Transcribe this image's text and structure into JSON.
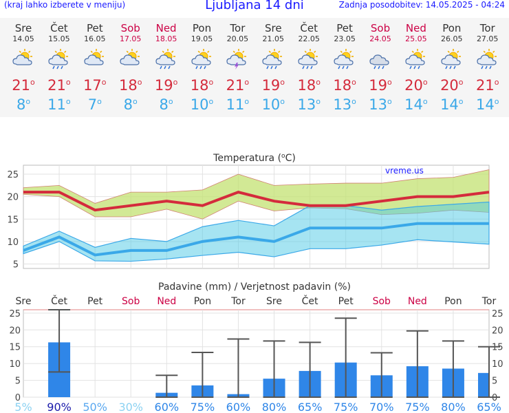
{
  "header": {
    "left_note": "(kraj lahko izberete v meniju)",
    "title": "Ljubljana 14 dni",
    "updated": "Zadnja posodobitev: 14.05.2025 - 04:24"
  },
  "forecast": [
    {
      "day": "Sre",
      "date": "14.05",
      "weekend": false,
      "icon": "partly-cloudy-icon",
      "tmax": "21",
      "tmin": "8"
    },
    {
      "day": "Čet",
      "date": "15.05",
      "weekend": false,
      "icon": "sun-rain-icon",
      "tmax": "21",
      "tmin": "11"
    },
    {
      "day": "Pet",
      "date": "16.05",
      "weekend": false,
      "icon": "partly-cloudy-icon",
      "tmax": "17",
      "tmin": "7"
    },
    {
      "day": "Sob",
      "date": "17.05",
      "weekend": true,
      "icon": "partly-cloudy-icon",
      "tmax": "18",
      "tmin": "8"
    },
    {
      "day": "Ned",
      "date": "18.05",
      "weekend": true,
      "icon": "sun-rain-icon",
      "tmax": "19",
      "tmin": "8"
    },
    {
      "day": "Pon",
      "date": "19.05",
      "weekend": false,
      "icon": "sun-rain-icon",
      "tmax": "18",
      "tmin": "10"
    },
    {
      "day": "Tor",
      "date": "20.05",
      "weekend": false,
      "icon": "thunderstorm-icon",
      "tmax": "21",
      "tmin": "11"
    },
    {
      "day": "Sre",
      "date": "21.05",
      "weekend": false,
      "icon": "sun-rain-icon",
      "tmax": "19",
      "tmin": "10"
    },
    {
      "day": "Čet",
      "date": "22.05",
      "weekend": false,
      "icon": "sun-rain-icon",
      "tmax": "18",
      "tmin": "13"
    },
    {
      "day": "Pet",
      "date": "23.05",
      "weekend": false,
      "icon": "sun-rain-icon",
      "tmax": "18",
      "tmin": "13"
    },
    {
      "day": "Sob",
      "date": "24.05",
      "weekend": true,
      "icon": "cloud-rain-icon",
      "tmax": "19",
      "tmin": "13"
    },
    {
      "day": "Ned",
      "date": "25.05",
      "weekend": true,
      "icon": "sun-rain-icon",
      "tmax": "20",
      "tmin": "14"
    },
    {
      "day": "Pon",
      "date": "26.05",
      "weekend": false,
      "icon": "sun-rain-icon",
      "tmax": "20",
      "tmin": "14"
    },
    {
      "day": "Tor",
      "date": "27.05",
      "weekend": false,
      "icon": "sun-rain-icon",
      "tmax": "21",
      "tmin": "14"
    }
  ],
  "degree_symbol": "o",
  "colors": {
    "tmax": "#d42b3c",
    "tmin": "#3aa8e8",
    "weekend": "#cc0044",
    "bar": "#2f86e8"
  },
  "chart_data": [
    {
      "type": "line",
      "title": "Temperatura (oC)",
      "watermark": "vreme.us",
      "categories": [
        "14.05",
        "15.05",
        "16.05",
        "17.05",
        "18.05",
        "19.05",
        "20.05",
        "21.05",
        "22.05",
        "23.05",
        "24.05",
        "25.05",
        "26.05",
        "27.05"
      ],
      "ylim": [
        4,
        27
      ],
      "yticks": [
        5,
        10,
        15,
        20,
        25
      ],
      "grid": true,
      "series": [
        {
          "role": "tmax",
          "values": [
            21,
            21,
            17,
            18,
            19,
            18,
            21,
            19,
            18,
            18,
            19,
            20,
            20,
            21
          ]
        },
        {
          "role": "tmin",
          "values": [
            8,
            11,
            7,
            8,
            8,
            10,
            11,
            10,
            13,
            13,
            13,
            14,
            14,
            14
          ]
        }
      ],
      "bands": [
        {
          "role": "tmax_range",
          "upper": [
            22,
            22.5,
            18.5,
            21,
            21,
            21.5,
            25,
            22.5,
            22.8,
            23,
            23,
            24,
            24.3,
            26
          ],
          "lower": [
            20.5,
            20,
            15.5,
            15.5,
            17.2,
            15,
            19,
            16.8,
            17.5,
            17.3,
            16,
            16.3,
            17,
            16.5
          ]
        },
        {
          "role": "tmin_range",
          "upper": [
            9,
            12.3,
            8.7,
            10.7,
            10,
            13.3,
            14.7,
            13.5,
            18,
            18,
            17,
            17.8,
            18.3,
            18.8
          ],
          "lower": [
            7.3,
            10,
            5.7,
            5.6,
            6.1,
            6.9,
            7.6,
            6.6,
            8.4,
            8.4,
            9.2,
            10.4,
            9.9,
            9.4
          ]
        }
      ]
    },
    {
      "type": "bar",
      "title": "Padavine (mm) / Verjetnost padavin (%)",
      "categories": [
        "Sre",
        "Čet",
        "Pet",
        "Sob",
        "Ned",
        "Pon",
        "Tor",
        "Sre",
        "Čet",
        "Pet",
        "Sob",
        "Ned",
        "Pon",
        "Tor"
      ],
      "weekend": [
        false,
        false,
        false,
        true,
        true,
        false,
        false,
        false,
        false,
        false,
        true,
        true,
        false,
        false
      ],
      "ylim": [
        0,
        26
      ],
      "yticks": [
        0,
        5,
        10,
        15,
        20,
        25
      ],
      "values": [
        0,
        16.3,
        0,
        0,
        1.3,
        3.5,
        0.9,
        5.5,
        7.8,
        10.3,
        6.5,
        9.2,
        8.5,
        7.2
      ],
      "err_low": [
        0,
        7.5,
        0,
        0,
        0,
        0,
        0,
        0,
        0,
        0,
        0,
        0,
        0,
        0
      ],
      "err_high": [
        0,
        26,
        0,
        0,
        6.5,
        13.3,
        17.3,
        16.7,
        16.3,
        23.5,
        13.2,
        19.7,
        16.7,
        15
      ],
      "probability": [
        "5%",
        "90%",
        "50%",
        "30%",
        "60%",
        "75%",
        "60%",
        "80%",
        "65%",
        "75%",
        "70%",
        "75%",
        "80%",
        "65%"
      ],
      "probability_values": [
        5,
        90,
        50,
        30,
        60,
        75,
        60,
        80,
        65,
        75,
        70,
        75,
        80,
        65
      ]
    }
  ]
}
